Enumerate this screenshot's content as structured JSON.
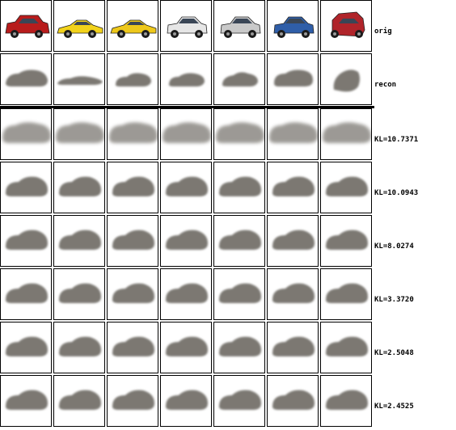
{
  "rows": [
    {
      "label": "orig",
      "kind": "orig"
    },
    {
      "label": "recon",
      "kind": "recon"
    },
    {
      "label": "KL=10.7371",
      "kind": "blur"
    },
    {
      "label": "KL=10.0943",
      "kind": "blob"
    },
    {
      "label": "KL=8.0274",
      "kind": "blob"
    },
    {
      "label": "KL=3.3720",
      "kind": "blob"
    },
    {
      "label": "KL=2.5048",
      "kind": "blob"
    },
    {
      "label": "KL=2.4525",
      "kind": "blob"
    }
  ],
  "originals": [
    {
      "icon": "red-suv-icon",
      "color": "#b81c1c"
    },
    {
      "icon": "yellow-sportscar-icon",
      "color": "#f2d21a"
    },
    {
      "icon": "yellow-sportscar-icon",
      "color": "#eec81a"
    },
    {
      "icon": "white-hatchback-icon",
      "color": "#e6e6e6"
    },
    {
      "icon": "silver-hatchback-icon",
      "color": "#c9c9c9"
    },
    {
      "icon": "blue-hatchback-icon",
      "color": "#2f5ea8"
    },
    {
      "icon": "red-minivan-icon",
      "color": "#b0242a"
    }
  ],
  "colors": {
    "blob": "#7b7872",
    "border": "#000000",
    "background": "#ffffff"
  }
}
